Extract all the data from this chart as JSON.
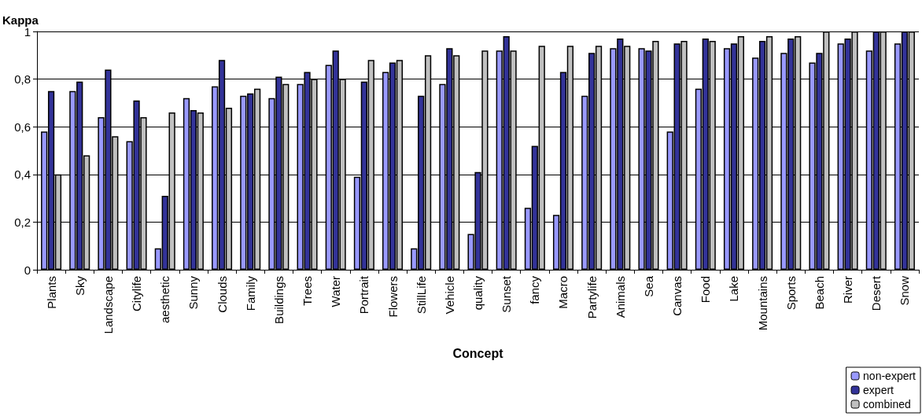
{
  "chart_data": {
    "type": "bar",
    "xlabel": "Concept",
    "ylabel": "Kappa",
    "categories": [
      "Plants",
      "Sky",
      "Landscape",
      "Citylife",
      "aesthetic",
      "Sunny",
      "Clouds",
      "Family",
      "Buildings",
      "Trees",
      "Water",
      "Portrait",
      "Flowers",
      "StillLife",
      "Vehicle",
      "quality",
      "Sunset",
      "fancy",
      "Macro",
      "Partylife",
      "Animals",
      "Sea",
      "Canvas",
      "Food",
      "Lake",
      "Mountains",
      "Sports",
      "Beach",
      "River",
      "Desert",
      "Snow"
    ],
    "series": [
      {
        "name": "non-expert",
        "color": "#9999ff",
        "values": [
          0.58,
          0.75,
          0.64,
          0.54,
          0.09,
          0.72,
          0.77,
          0.73,
          0.72,
          0.78,
          0.86,
          0.39,
          0.83,
          0.09,
          0.78,
          0.15,
          0.92,
          0.26,
          0.23,
          0.73,
          0.93,
          0.93,
          0.58,
          0.76,
          0.93,
          0.89,
          0.91,
          0.87,
          0.95,
          0.92,
          0.95
        ]
      },
      {
        "name": "expert",
        "color": "#333399",
        "values": [
          0.75,
          0.79,
          0.84,
          0.71,
          0.31,
          0.67,
          0.88,
          0.74,
          0.81,
          0.83,
          0.92,
          0.79,
          0.87,
          0.73,
          0.93,
          0.41,
          0.98,
          0.52,
          0.83,
          0.91,
          0.97,
          0.92,
          0.95,
          0.97,
          0.95,
          0.96,
          0.97,
          0.91,
          0.97,
          1.0,
          1.0
        ]
      },
      {
        "name": "combined",
        "color": "#c0c0c0",
        "values": [
          0.4,
          0.48,
          0.56,
          0.64,
          0.66,
          0.66,
          0.68,
          0.76,
          0.78,
          0.8,
          0.8,
          0.88,
          0.88,
          0.9,
          0.9,
          0.92,
          0.92,
          0.94,
          0.94,
          0.94,
          0.94,
          0.96,
          0.96,
          0.96,
          0.98,
          0.98,
          0.98,
          1.0,
          1.0,
          1.0,
          1.0
        ]
      }
    ],
    "ylim": [
      0,
      1
    ],
    "yticks": [
      0,
      {
        "value": 0.2,
        "label": "0,2"
      },
      {
        "value": 0.4,
        "label": "0,4"
      },
      {
        "value": 0.6,
        "label": "0,6"
      },
      {
        "value": 0.8,
        "label": "0,8"
      },
      1
    ],
    "grid": "y",
    "legend": "bottom right"
  }
}
